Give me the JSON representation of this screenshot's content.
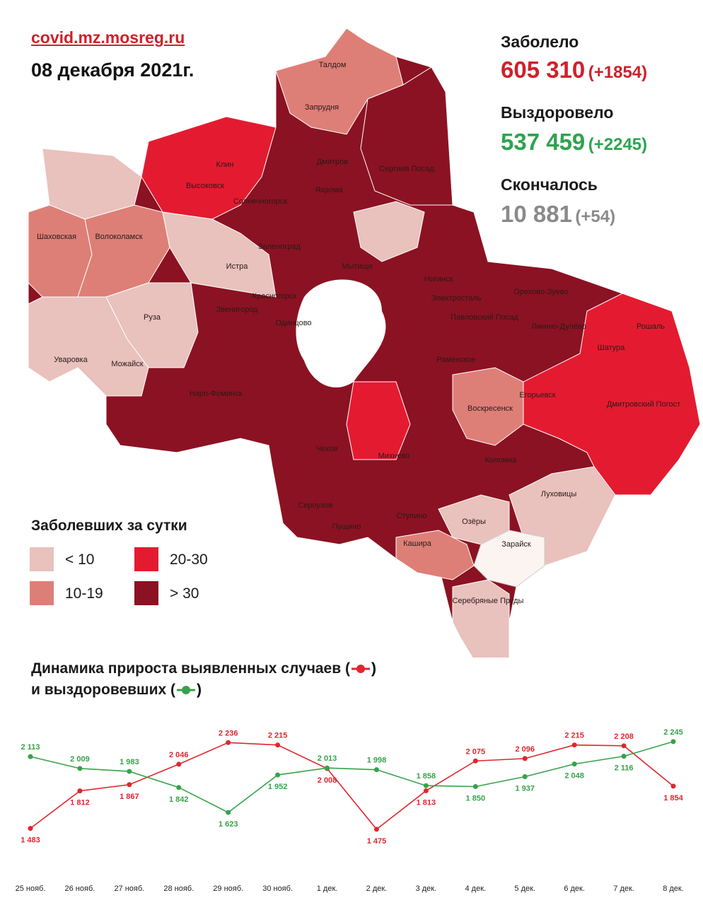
{
  "header": {
    "source": "covid.mz.mosreg.ru",
    "date": "08 декабря 2021г."
  },
  "stats": {
    "infected": {
      "label": "Заболело",
      "value": "605 310",
      "delta": "(+1854)",
      "color": "#d0202a"
    },
    "recovered": {
      "label": "Выздоровело",
      "value": "537 459",
      "delta": "(+2245)",
      "color": "#2ea44f"
    },
    "deaths": {
      "label": "Скончалось",
      "value": "10 881",
      "delta": "(+54)",
      "color": "#8a8a8a"
    }
  },
  "map": {
    "colors": {
      "lt10": "#e9c1bd",
      "10-19": "#de7f77",
      "20-30": "#e41b30",
      "gt30": "#8b1222",
      "none": "#fbf4f1"
    },
    "labels": [
      "Талдом",
      "Запрудня",
      "Клин",
      "Высоковск",
      "Дмитров",
      "Сергиев Посад",
      "Яхрома",
      "Солнечногорск",
      "Шаховская",
      "Волоколамск",
      "Зеленоград",
      "Истра",
      "Мытищи",
      "Ногинск",
      "Электросталь",
      "Орехово-Зуево",
      "Красногорск",
      "Звенигород",
      "Одинцово",
      "Павловский Посад",
      "Ликино-Дулёво",
      "Рошаль",
      "Руза",
      "Шатура",
      "Уваровка",
      "Можайск",
      "Раменское",
      "Наро-Фоминск",
      "Егорьевск",
      "Дмитровский Погост",
      "Воскресенск",
      "Чехов",
      "Михнево",
      "Коломна",
      "Серпухов",
      "Луховицы",
      "Ступино",
      "Пущино",
      "Озёры",
      "Кашира",
      "Зарайск",
      "Серебряные Пруды"
    ]
  },
  "legend": {
    "title": "Заболевших за сутки",
    "items": [
      {
        "label": "< 10",
        "color": "#e9c1bd"
      },
      {
        "label": "20-30",
        "color": "#e41b30"
      },
      {
        "label": "10-19",
        "color": "#de7f77"
      },
      {
        "label": "> 30",
        "color": "#8b1222"
      }
    ]
  },
  "dynamics": {
    "title_line1": "Динамика прироста выявленных случаев (",
    "title_line2": "и выздоровевших (",
    "close": ")"
  },
  "chart_data": {
    "type": "line",
    "categories": [
      "25 нояб.",
      "26 нояб.",
      "27 нояб.",
      "28 нояб.",
      "29 нояб.",
      "30 нояб.",
      "1 дек.",
      "2 дек.",
      "3 дек.",
      "4 дек.",
      "5 дек.",
      "6 дек.",
      "7 дек.",
      "8 дек."
    ],
    "series": [
      {
        "color": "#e0262e",
        "values": [
          1483,
          1812,
          1867,
          2046,
          2236,
          2215,
          2008,
          1475,
          1813,
          2075,
          2096,
          2215,
          2208,
          1854
        ],
        "labels": [
          "1 483",
          "1 812",
          "1 867",
          "2 046",
          "2 236",
          "2 215",
          "2 008",
          "1 475",
          "1 813",
          "2 075",
          "2 096",
          "2 215",
          "2 208",
          "1 854"
        ]
      },
      {
        "color": "#37a24a",
        "values": [
          2113,
          2009,
          1983,
          1842,
          1623,
          1952,
          2013,
          1998,
          1858,
          1850,
          1937,
          2048,
          2116,
          2245
        ],
        "labels": [
          "2 113",
          "2 009",
          "1 983",
          "1 842",
          "1 623",
          "1 952",
          "2 013",
          "1 998",
          "1 858",
          "1 850",
          "1 937",
          "2 048",
          "2 116",
          "2 245"
        ]
      }
    ],
    "ylim": [
      1400,
      2300
    ],
    "grid": false,
    "legend": "none"
  }
}
